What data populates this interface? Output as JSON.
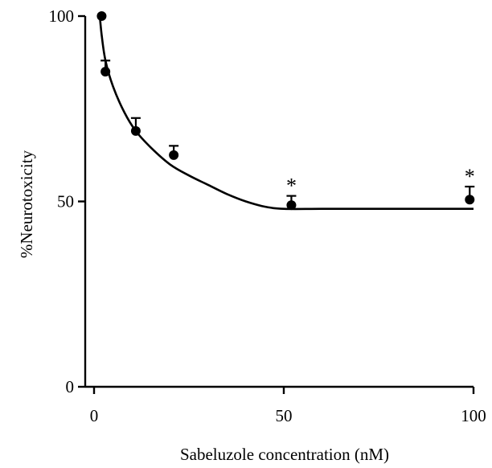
{
  "chart_data": {
    "type": "scatter",
    "title": "",
    "xlabel": "Sabeluzole concentration (nM)",
    "ylabel": "%Neurotoxicity",
    "xlim": [
      0,
      100
    ],
    "ylim": [
      0,
      100
    ],
    "xticks": [
      0,
      50,
      100
    ],
    "yticks": [
      0,
      50,
      100
    ],
    "xtick_labels": [
      "0",
      "50",
      "100"
    ],
    "ytick_labels": [
      "0",
      "50",
      "100"
    ],
    "grid": false,
    "legend": "none",
    "series": [
      {
        "points": [
          {
            "x": 2,
            "y": 100,
            "err": 0,
            "sig": ""
          },
          {
            "x": 3,
            "y": 85,
            "err": 3,
            "sig": ""
          },
          {
            "x": 11,
            "y": 69,
            "err": 3.5,
            "sig": ""
          },
          {
            "x": 21,
            "y": 62.5,
            "err": 2.5,
            "sig": ""
          },
          {
            "x": 52,
            "y": 49,
            "err": 2.5,
            "sig": "*"
          },
          {
            "x": 99,
            "y": 50.5,
            "err": 3.5,
            "sig": "*"
          }
        ]
      }
    ],
    "fit_curve": {
      "points": [
        [
          1.5,
          100
        ],
        [
          2,
          95
        ],
        [
          3,
          88
        ],
        [
          5,
          81
        ],
        [
          8,
          74
        ],
        [
          11,
          69
        ],
        [
          15,
          64.5
        ],
        [
          20,
          60
        ],
        [
          25,
          57
        ],
        [
          30,
          54.5
        ],
        [
          35,
          52
        ],
        [
          40,
          50
        ],
        [
          45,
          48.6
        ],
        [
          50,
          48
        ],
        [
          60,
          48
        ],
        [
          75,
          48
        ],
        [
          100,
          48
        ]
      ]
    }
  }
}
